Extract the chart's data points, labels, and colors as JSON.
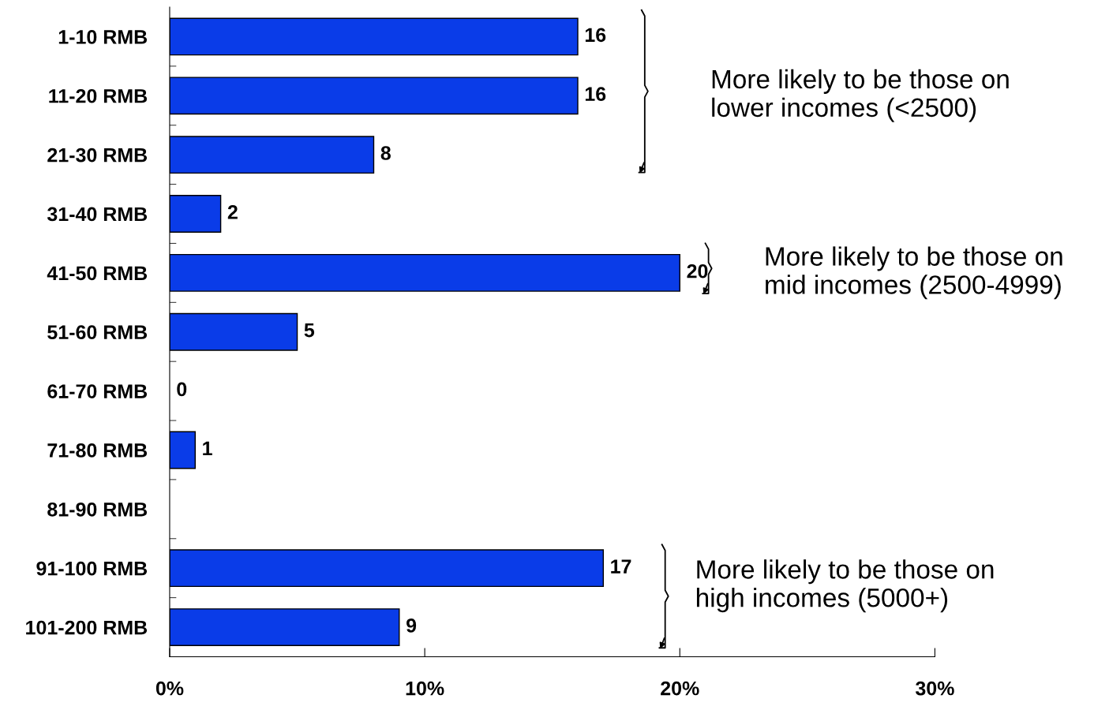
{
  "chart_data": {
    "type": "bar",
    "orientation": "horizontal",
    "categories": [
      "1-10 RMB",
      "11-20 RMB",
      "21-30 RMB",
      "31-40 RMB",
      "41-50 RMB",
      "51-60 RMB",
      "61-70 RMB",
      "71-80 RMB",
      "81-90 RMB",
      "91-100 RMB",
      "101-200 RMB"
    ],
    "values": [
      16,
      16,
      8,
      2,
      20,
      5,
      0,
      1,
      null,
      17,
      9
    ],
    "color": "#0a3ce8",
    "xlim": [
      0,
      30
    ],
    "xticks": [
      {
        "value": 0,
        "label": "0%"
      },
      {
        "value": 10,
        "label": "10%"
      },
      {
        "value": 20,
        "label": "20%"
      },
      {
        "value": 30,
        "label": "30%"
      }
    ],
    "data_labels": true,
    "grid": false,
    "annotations": [
      "More likely to be those on\nlower incomes (<2500)",
      "More likely to be those on\nmid incomes (2500-4999)",
      "More likely to be those on\nhigh incomes (5000+)"
    ]
  }
}
